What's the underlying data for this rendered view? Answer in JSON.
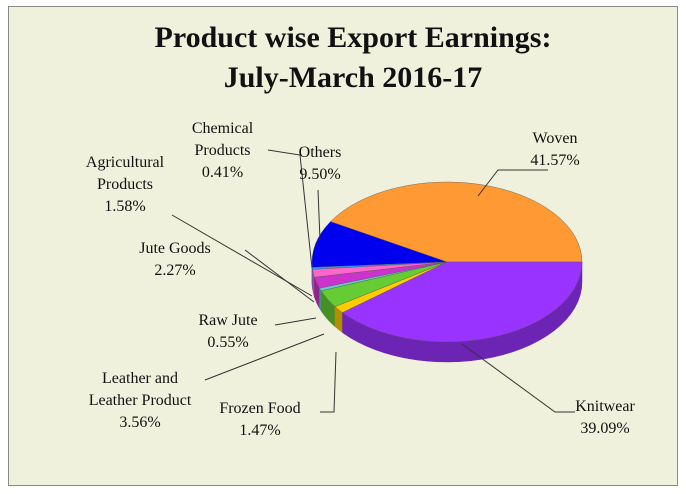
{
  "chart_data": {
    "type": "pie3d",
    "title": "Product wise Export Earnings: July-March 2016-17",
    "categories": [
      "Woven",
      "Others",
      "Chemical Products",
      "Agricultural Products",
      "Jute Goods",
      "Raw Jute",
      "Leather and Leather Product",
      "Frozen Food",
      "Knitwear"
    ],
    "values": [
      41.57,
      9.5,
      0.41,
      1.58,
      2.27,
      0.55,
      3.56,
      1.47,
      39.09
    ],
    "value_labels": [
      "41.57%",
      "9.50%",
      "0.41%",
      "1.58%",
      "2.27%",
      "0.55%",
      "3.56%",
      "1.47%",
      "39.09%"
    ],
    "colors": [
      "#ff9933",
      "#0000ee",
      "#3399ff",
      "#ff66cc",
      "#cc33cc",
      "#66cccc",
      "#66cc33",
      "#ffcc00",
      "#9933ff"
    ]
  }
}
